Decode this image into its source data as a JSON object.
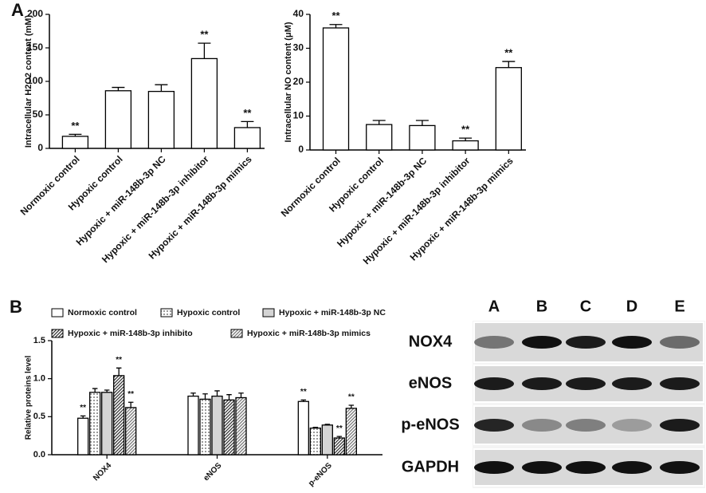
{
  "panels": [
    "A",
    "B"
  ],
  "chart_data": [
    {
      "type": "bar",
      "y_label": "Intracellular H2O2 content (mM)",
      "categories": [
        "Normoxic control",
        "Hypoxic control",
        "Hypoxic + miR-148b-3p NC",
        "Hypoxic + miR-148b-3p inhibitor",
        "Hypoxic + miR-148b-3p mimics"
      ],
      "values": [
        18,
        86,
        85,
        134,
        31
      ],
      "errors": [
        3,
        5,
        10,
        23,
        9
      ],
      "significance": [
        "**",
        null,
        null,
        "**",
        "**"
      ],
      "color": "#ffffff",
      "ylim": [
        0,
        200
      ],
      "yticks": [
        0,
        50,
        100,
        150,
        200
      ]
    },
    {
      "type": "bar",
      "y_label": "Intracellular NO content (μM)",
      "categories": [
        "Normoxic control",
        "Hypoxic control",
        "Hypoxic + miR-148b-3p NC",
        "Hypoxic + miR-148b-3p inhibitor",
        "Hypoxic + miR-148b-3p mimics"
      ],
      "values": [
        36,
        7.5,
        7.2,
        2.7,
        24.3
      ],
      "errors": [
        1,
        1.2,
        1.5,
        0.8,
        1.8
      ],
      "significance": [
        "**",
        null,
        null,
        "**",
        "**"
      ],
      "color": "#ffffff",
      "ylim": [
        0,
        40
      ],
      "yticks": [
        0,
        10,
        20,
        30,
        40
      ]
    },
    {
      "type": "grouped_bar",
      "y_label": "Relative proteins level",
      "categories": [
        "NOX4",
        "eNOS",
        "p-eNOS"
      ],
      "ylim": [
        0,
        1.5
      ],
      "yticks": [
        {
          "value": 0,
          "label": "0.0"
        },
        0.5,
        {
          "value": 1,
          "label": "1.0"
        },
        1.5
      ],
      "legend": "top",
      "series": [
        {
          "name": "Normoxic control",
          "color": "#ffffff",
          "pattern": "solid",
          "values": [
            0.48,
            0.77,
            0.7
          ],
          "errors": [
            0.03,
            0.04,
            0.02
          ],
          "significance": [
            "**",
            null,
            "**"
          ]
        },
        {
          "name": "Hypoxic control",
          "color": "#9a9a9a",
          "pattern": "dots",
          "values": [
            0.82,
            0.73,
            0.35
          ],
          "errors": [
            0.05,
            0.07,
            0.01
          ],
          "significance": [
            null,
            null,
            null
          ]
        },
        {
          "name": "Hypoxic + miR-148b-3p NC",
          "color": "#d4d4d4",
          "pattern": "solid",
          "values": [
            0.82,
            0.77,
            0.39
          ],
          "errors": [
            0.03,
            0.07,
            0.01
          ],
          "significance": [
            null,
            null,
            null
          ]
        },
        {
          "name": "Hypoxic + miR-148b-3p inhibito",
          "color": "#333333",
          "pattern": "hatch",
          "values": [
            1.04,
            0.72,
            0.22
          ],
          "errors": [
            0.1,
            0.07,
            0.02
          ],
          "significance": [
            "**",
            null,
            "**"
          ]
        },
        {
          "name": "Hypoxic + miR-148b-3p mimics",
          "color": "#777777",
          "pattern": "hatch",
          "values": [
            0.62,
            0.75,
            0.61
          ],
          "errors": [
            0.07,
            0.06,
            0.04
          ],
          "significance": [
            "**",
            null,
            "**"
          ]
        }
      ]
    }
  ],
  "blot": {
    "lanes": [
      "A",
      "B",
      "C",
      "D",
      "E"
    ],
    "proteins": [
      "NOX4",
      "eNOS",
      "p-eNOS",
      "GAPDH"
    ]
  }
}
